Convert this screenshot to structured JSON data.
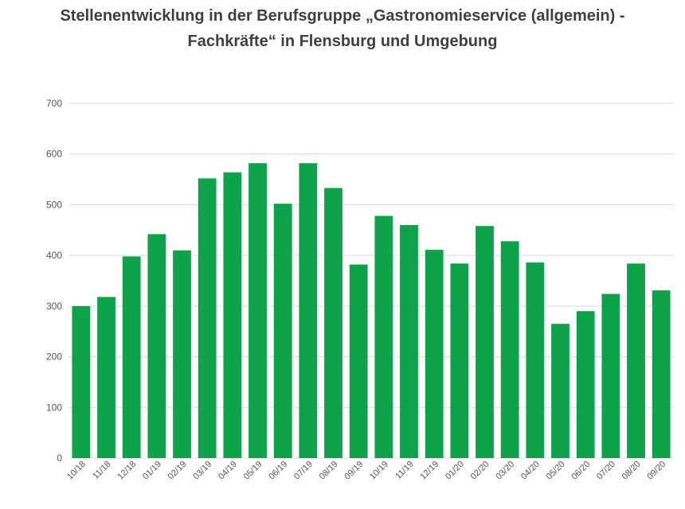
{
  "chart_data": {
    "type": "bar",
    "title_lines": [
      "Stellenentwicklung in der Berufsgruppe „Gastronomieservice (allgemein) -",
      "Fachkräfte“ in Flensburg und Umgebung"
    ],
    "categories": [
      "10/18",
      "11/18",
      "12/18",
      "01/19",
      "02/19",
      "03/19",
      "04/19",
      "05/19",
      "06/19",
      "07/19",
      "08/19",
      "09/19",
      "10/19",
      "11/19",
      "12/19",
      "01/20",
      "02/20",
      "03/20",
      "04/20",
      "05/20",
      "06/20",
      "07/20",
      "08/20",
      "09/20"
    ],
    "values": [
      300,
      318,
      398,
      442,
      410,
      552,
      564,
      582,
      502,
      582,
      533,
      382,
      478,
      460,
      411,
      384,
      458,
      428,
      386,
      265,
      290,
      324,
      384,
      331
    ],
    "yticks": [
      0,
      100,
      200,
      300,
      400,
      500,
      600,
      700
    ],
    "ylim": [
      0,
      700
    ],
    "xlabel": "",
    "ylabel": "",
    "grid": true,
    "bar_color": "#0ea24b",
    "grid_color": "#d9d9d9",
    "text_color": "#3f3f3f"
  }
}
